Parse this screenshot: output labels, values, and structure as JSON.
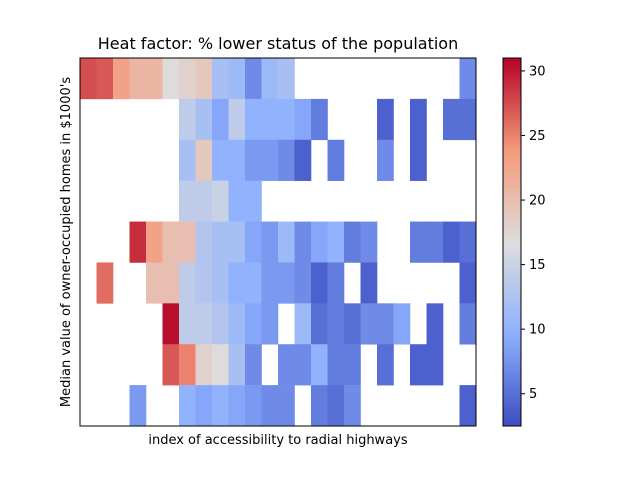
{
  "chart_data": {
    "type": "heatmap",
    "title": "Heat factor: % lower status of the population",
    "xlabel": "index of accessibility to radial highways",
    "ylabel": "Median value of owner-occupied homes in $1000's",
    "x_ticks_visible": false,
    "y_ticks_visible": false,
    "n_cols": 24,
    "n_rows": 9,
    "colormap": "coolwarm",
    "color_range": [
      2.5,
      31
    ],
    "colorbar_ticks": [
      5,
      10,
      15,
      20,
      25,
      30
    ],
    "values": [
      [
        27.5,
        27,
        23,
        21,
        21,
        17,
        18,
        19,
        12,
        11,
        7,
        11,
        12,
        null,
        null,
        null,
        null,
        null,
        null,
        null,
        null,
        null,
        null,
        7
      ],
      [
        null,
        null,
        null,
        null,
        null,
        null,
        14,
        12,
        9,
        14,
        10,
        10,
        10,
        9,
        6,
        null,
        null,
        null,
        4,
        null,
        4,
        null,
        5,
        5
      ],
      [
        null,
        null,
        null,
        null,
        null,
        null,
        12,
        19,
        10,
        10,
        8,
        8,
        7,
        4,
        null,
        6,
        null,
        null,
        7,
        null,
        4,
        null,
        null,
        null
      ],
      [
        null,
        null,
        null,
        null,
        null,
        null,
        14,
        14,
        15,
        10,
        10,
        null,
        null,
        null,
        null,
        null,
        null,
        null,
        null,
        null,
        null,
        null,
        null,
        null
      ],
      [
        null,
        null,
        null,
        29,
        23,
        20,
        20,
        13,
        12,
        12,
        9,
        8,
        11,
        7,
        9,
        10,
        6,
        7,
        null,
        null,
        6,
        6,
        4,
        5
      ],
      [
        null,
        26,
        null,
        null,
        20,
        20,
        14,
        13,
        12,
        10,
        10,
        8,
        8,
        7,
        4,
        6,
        null,
        4,
        null,
        null,
        null,
        null,
        null,
        4
      ],
      [
        null,
        null,
        null,
        null,
        null,
        30.5,
        14,
        14,
        13,
        11,
        9,
        8,
        null,
        11,
        5,
        6,
        5,
        7,
        7,
        9,
        null,
        4,
        null,
        6
      ],
      [
        null,
        null,
        null,
        null,
        null,
        27,
        25,
        18,
        17,
        12,
        7,
        null,
        7,
        7,
        10,
        6,
        6,
        null,
        5,
        null,
        4,
        4,
        null,
        null
      ],
      [
        null,
        null,
        null,
        8,
        null,
        null,
        10,
        9,
        10,
        9,
        8,
        7,
        7,
        null,
        6,
        5,
        7,
        null,
        null,
        null,
        null,
        null,
        null,
        4
      ]
    ]
  }
}
